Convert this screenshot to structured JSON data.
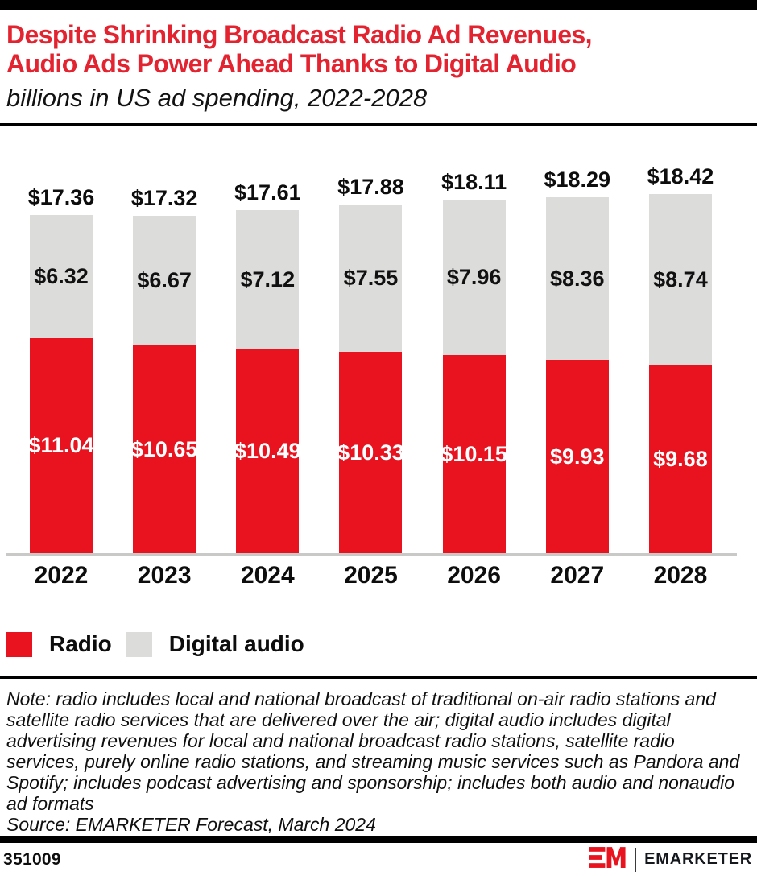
{
  "page": {
    "header": {
      "title_line1": "Despite Shrinking Broadcast Radio Ad Revenues,",
      "title_line2": "Audio Ads Power Ahead Thanks to Digital Audio",
      "subtitle": "billions in US ad spending, 2022-2028"
    },
    "legend": [
      {
        "label": "Radio",
        "color": "#E8131F"
      },
      {
        "label": "Digital audio",
        "color": "#DCDCDA"
      }
    ],
    "note": "Note: radio includes local and national broadcast of traditional on-air radio stations and satellite radio services that are delivered over the air; digital audio includes digital advertising revenues for local and national broadcast radio stations, satellite radio services, purely online radio stations, and streaming music services such as Pandora and Spotify; includes podcast advertising and sponsorship; includes both audio and nonaudio ad formats",
    "source": "Source: EMARKETER Forecast, March 2024",
    "footer": {
      "chart_id": "351009",
      "brand": "EMARKETER"
    },
    "colors": {
      "title_red": "#E32430",
      "bar_red": "#E8131F",
      "bar_gray": "#DCDCDA",
      "axis_gray": "#C9C9C7",
      "black_bar": "#000000"
    }
  },
  "chart_data": {
    "type": "bar",
    "stacked": true,
    "title": "Despite Shrinking Broadcast Radio Ad Revenues, Audio Ads Power Ahead Thanks to Digital Audio",
    "subtitle": "billions in US ad spending, 2022-2028",
    "unit": "billions of US dollars",
    "categories": [
      "2022",
      "2023",
      "2024",
      "2025",
      "2026",
      "2027",
      "2028"
    ],
    "series": [
      {
        "name": "Radio",
        "color": "#E8131F",
        "label_color": "#FFFFFF",
        "values": [
          11.04,
          10.65,
          10.49,
          10.33,
          10.15,
          9.93,
          9.68
        ]
      },
      {
        "name": "Digital audio",
        "color": "#DCDCDA",
        "label_color": "#111111",
        "values": [
          6.32,
          6.67,
          7.12,
          7.55,
          7.96,
          8.36,
          8.74
        ]
      }
    ],
    "totals": [
      17.36,
      17.32,
      17.61,
      17.88,
      18.11,
      18.29,
      18.42
    ],
    "value_prefix": "$",
    "legend_position": "bottom-left",
    "grid": false,
    "ylim": [
      0,
      18.42
    ]
  }
}
